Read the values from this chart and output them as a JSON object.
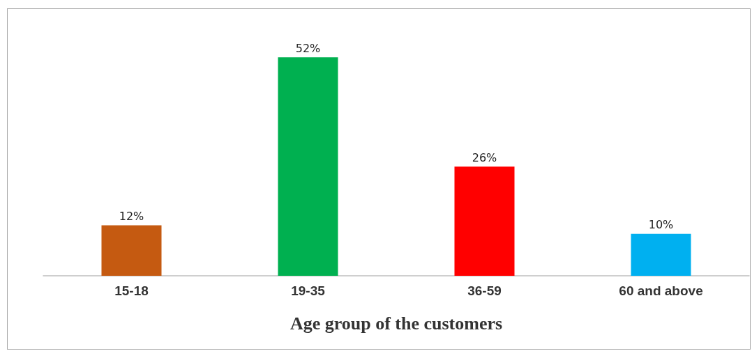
{
  "chart_data": {
    "type": "bar",
    "xlabel": "Age group of the customers",
    "categories": [
      "15-18",
      "19-35",
      "36-59",
      "60 and above"
    ],
    "values": [
      12,
      52,
      26,
      10
    ],
    "colors": [
      "#c55a11",
      "#00b050",
      "#ff0000",
      "#00b0f0"
    ],
    "value_labels": [
      "12%",
      "52%",
      "26%",
      "10%"
    ]
  }
}
